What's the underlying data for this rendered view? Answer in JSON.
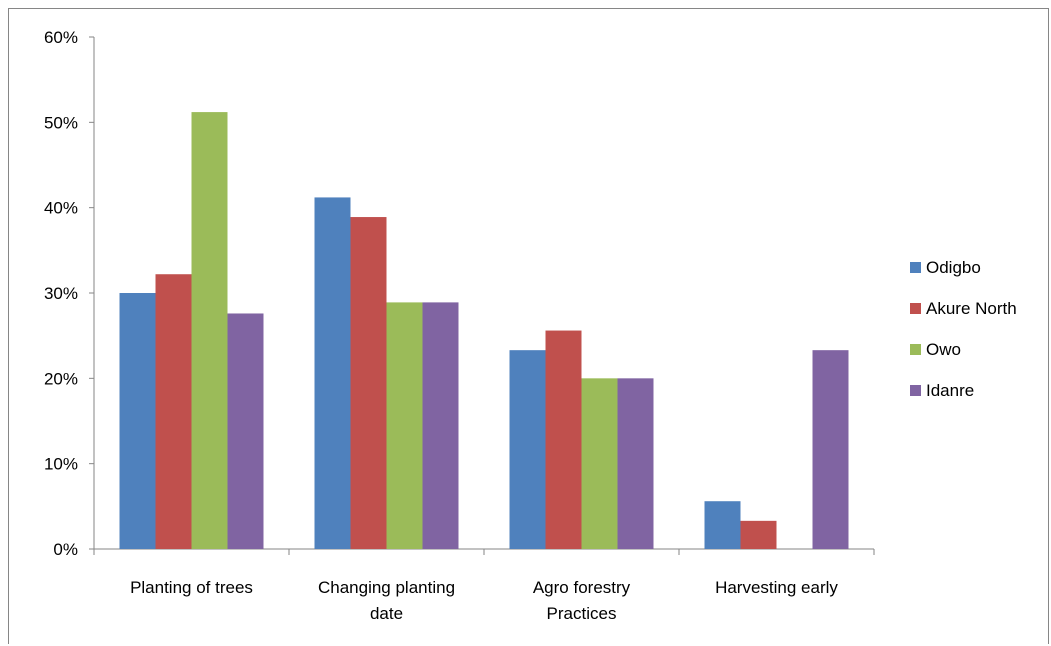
{
  "chart_data": {
    "type": "bar",
    "title": "",
    "xlabel": "",
    "ylabel": "",
    "ylim": [
      0,
      0.6
    ],
    "yticks": [
      "0%",
      "10%",
      "20%",
      "30%",
      "40%",
      "50%",
      "60%"
    ],
    "categories": [
      [
        "Planting of trees"
      ],
      [
        "Changing planting",
        "date"
      ],
      [
        "Agro forestry",
        "Practices"
      ],
      [
        "Harvesting early"
      ]
    ],
    "series": [
      {
        "name": "Odigbo",
        "color": "#4f81bd",
        "values": [
          0.3,
          0.412,
          0.233,
          0.056
        ]
      },
      {
        "name": "Akure North",
        "color": "#c0504d",
        "values": [
          0.322,
          0.389,
          0.256,
          0.033
        ]
      },
      {
        "name": "Owo",
        "color": "#9bbb59",
        "values": [
          0.512,
          0.289,
          0.2,
          0.0
        ]
      },
      {
        "name": "Idanre",
        "color": "#8064a2",
        "values": [
          0.276,
          0.289,
          0.2,
          0.233
        ]
      }
    ],
    "grid": false,
    "legend_position": "right"
  }
}
